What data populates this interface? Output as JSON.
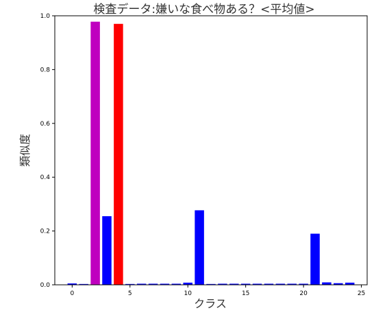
{
  "chart_data": {
    "type": "bar",
    "title": "検査データ:嫌いな食べ物ある？<平均値>",
    "xlabel": "クラス",
    "ylabel": "類似度",
    "xlim": [
      -1.5,
      25.5
    ],
    "ylim": [
      0,
      1.0
    ],
    "x_ticks": [
      0,
      5,
      10,
      15,
      20,
      25
    ],
    "y_ticks": [
      0.0,
      0.2,
      0.4,
      0.6,
      0.8,
      1.0
    ],
    "grid": false,
    "x": [
      0,
      1,
      2,
      3,
      4,
      5,
      6,
      7,
      8,
      9,
      10,
      11,
      12,
      13,
      14,
      15,
      16,
      17,
      18,
      19,
      20,
      21,
      22,
      23,
      24
    ],
    "values": [
      0.005,
      0.003,
      0.978,
      0.255,
      0.97,
      0.003,
      0.004,
      0.004,
      0.004,
      0.004,
      0.008,
      0.277,
      0.003,
      0.004,
      0.004,
      0.004,
      0.004,
      0.004,
      0.004,
      0.004,
      0.004,
      0.19,
      0.009,
      0.006,
      0.008
    ],
    "bar_colors": [
      "#0000ff",
      "#0000ff",
      "#bf00bf",
      "#0000ff",
      "#ff0000",
      "#0000ff",
      "#0000ff",
      "#0000ff",
      "#0000ff",
      "#0000ff",
      "#0000ff",
      "#0000ff",
      "#0000ff",
      "#0000ff",
      "#0000ff",
      "#0000ff",
      "#0000ff",
      "#0000ff",
      "#0000ff",
      "#0000ff",
      "#0000ff",
      "#0000ff",
      "#0000ff",
      "#0000ff",
      "#0000ff"
    ]
  }
}
